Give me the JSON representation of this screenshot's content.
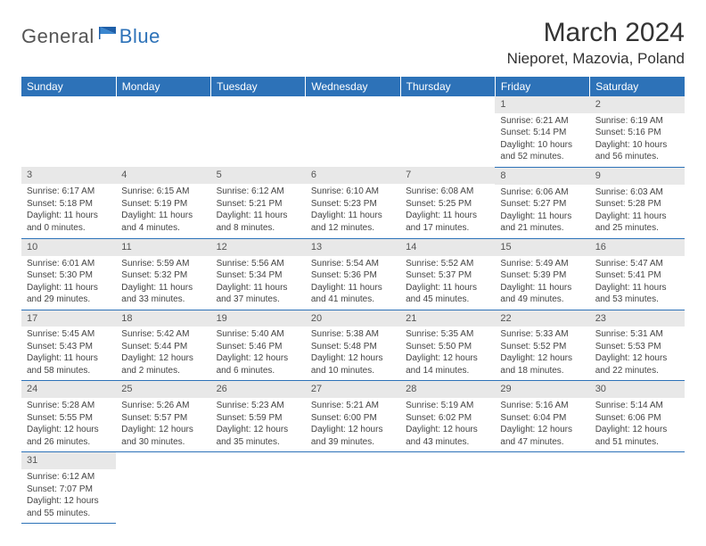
{
  "brand": {
    "name_a": "General",
    "name_b": "Blue"
  },
  "title": "March 2024",
  "location": "Nieporet, Mazovia, Poland",
  "colors": {
    "header_bg": "#2d72b8",
    "header_fg": "#ffffff",
    "daynum_bg": "#e8e8e8",
    "rule": "#2d72b8"
  },
  "weekdays": [
    "Sunday",
    "Monday",
    "Tuesday",
    "Wednesday",
    "Thursday",
    "Friday",
    "Saturday"
  ],
  "weeks": [
    [
      null,
      null,
      null,
      null,
      null,
      {
        "n": "1",
        "sunrise": "Sunrise: 6:21 AM",
        "sunset": "Sunset: 5:14 PM",
        "day1": "Daylight: 10 hours",
        "day2": "and 52 minutes."
      },
      {
        "n": "2",
        "sunrise": "Sunrise: 6:19 AM",
        "sunset": "Sunset: 5:16 PM",
        "day1": "Daylight: 10 hours",
        "day2": "and 56 minutes."
      }
    ],
    [
      {
        "n": "3",
        "sunrise": "Sunrise: 6:17 AM",
        "sunset": "Sunset: 5:18 PM",
        "day1": "Daylight: 11 hours",
        "day2": "and 0 minutes."
      },
      {
        "n": "4",
        "sunrise": "Sunrise: 6:15 AM",
        "sunset": "Sunset: 5:19 PM",
        "day1": "Daylight: 11 hours",
        "day2": "and 4 minutes."
      },
      {
        "n": "5",
        "sunrise": "Sunrise: 6:12 AM",
        "sunset": "Sunset: 5:21 PM",
        "day1": "Daylight: 11 hours",
        "day2": "and 8 minutes."
      },
      {
        "n": "6",
        "sunrise": "Sunrise: 6:10 AM",
        "sunset": "Sunset: 5:23 PM",
        "day1": "Daylight: 11 hours",
        "day2": "and 12 minutes."
      },
      {
        "n": "7",
        "sunrise": "Sunrise: 6:08 AM",
        "sunset": "Sunset: 5:25 PM",
        "day1": "Daylight: 11 hours",
        "day2": "and 17 minutes."
      },
      {
        "n": "8",
        "sunrise": "Sunrise: 6:06 AM",
        "sunset": "Sunset: 5:27 PM",
        "day1": "Daylight: 11 hours",
        "day2": "and 21 minutes."
      },
      {
        "n": "9",
        "sunrise": "Sunrise: 6:03 AM",
        "sunset": "Sunset: 5:28 PM",
        "day1": "Daylight: 11 hours",
        "day2": "and 25 minutes."
      }
    ],
    [
      {
        "n": "10",
        "sunrise": "Sunrise: 6:01 AM",
        "sunset": "Sunset: 5:30 PM",
        "day1": "Daylight: 11 hours",
        "day2": "and 29 minutes."
      },
      {
        "n": "11",
        "sunrise": "Sunrise: 5:59 AM",
        "sunset": "Sunset: 5:32 PM",
        "day1": "Daylight: 11 hours",
        "day2": "and 33 minutes."
      },
      {
        "n": "12",
        "sunrise": "Sunrise: 5:56 AM",
        "sunset": "Sunset: 5:34 PM",
        "day1": "Daylight: 11 hours",
        "day2": "and 37 minutes."
      },
      {
        "n": "13",
        "sunrise": "Sunrise: 5:54 AM",
        "sunset": "Sunset: 5:36 PM",
        "day1": "Daylight: 11 hours",
        "day2": "and 41 minutes."
      },
      {
        "n": "14",
        "sunrise": "Sunrise: 5:52 AM",
        "sunset": "Sunset: 5:37 PM",
        "day1": "Daylight: 11 hours",
        "day2": "and 45 minutes."
      },
      {
        "n": "15",
        "sunrise": "Sunrise: 5:49 AM",
        "sunset": "Sunset: 5:39 PM",
        "day1": "Daylight: 11 hours",
        "day2": "and 49 minutes."
      },
      {
        "n": "16",
        "sunrise": "Sunrise: 5:47 AM",
        "sunset": "Sunset: 5:41 PM",
        "day1": "Daylight: 11 hours",
        "day2": "and 53 minutes."
      }
    ],
    [
      {
        "n": "17",
        "sunrise": "Sunrise: 5:45 AM",
        "sunset": "Sunset: 5:43 PM",
        "day1": "Daylight: 11 hours",
        "day2": "and 58 minutes."
      },
      {
        "n": "18",
        "sunrise": "Sunrise: 5:42 AM",
        "sunset": "Sunset: 5:44 PM",
        "day1": "Daylight: 12 hours",
        "day2": "and 2 minutes."
      },
      {
        "n": "19",
        "sunrise": "Sunrise: 5:40 AM",
        "sunset": "Sunset: 5:46 PM",
        "day1": "Daylight: 12 hours",
        "day2": "and 6 minutes."
      },
      {
        "n": "20",
        "sunrise": "Sunrise: 5:38 AM",
        "sunset": "Sunset: 5:48 PM",
        "day1": "Daylight: 12 hours",
        "day2": "and 10 minutes."
      },
      {
        "n": "21",
        "sunrise": "Sunrise: 5:35 AM",
        "sunset": "Sunset: 5:50 PM",
        "day1": "Daylight: 12 hours",
        "day2": "and 14 minutes."
      },
      {
        "n": "22",
        "sunrise": "Sunrise: 5:33 AM",
        "sunset": "Sunset: 5:52 PM",
        "day1": "Daylight: 12 hours",
        "day2": "and 18 minutes."
      },
      {
        "n": "23",
        "sunrise": "Sunrise: 5:31 AM",
        "sunset": "Sunset: 5:53 PM",
        "day1": "Daylight: 12 hours",
        "day2": "and 22 minutes."
      }
    ],
    [
      {
        "n": "24",
        "sunrise": "Sunrise: 5:28 AM",
        "sunset": "Sunset: 5:55 PM",
        "day1": "Daylight: 12 hours",
        "day2": "and 26 minutes."
      },
      {
        "n": "25",
        "sunrise": "Sunrise: 5:26 AM",
        "sunset": "Sunset: 5:57 PM",
        "day1": "Daylight: 12 hours",
        "day2": "and 30 minutes."
      },
      {
        "n": "26",
        "sunrise": "Sunrise: 5:23 AM",
        "sunset": "Sunset: 5:59 PM",
        "day1": "Daylight: 12 hours",
        "day2": "and 35 minutes."
      },
      {
        "n": "27",
        "sunrise": "Sunrise: 5:21 AM",
        "sunset": "Sunset: 6:00 PM",
        "day1": "Daylight: 12 hours",
        "day2": "and 39 minutes."
      },
      {
        "n": "28",
        "sunrise": "Sunrise: 5:19 AM",
        "sunset": "Sunset: 6:02 PM",
        "day1": "Daylight: 12 hours",
        "day2": "and 43 minutes."
      },
      {
        "n": "29",
        "sunrise": "Sunrise: 5:16 AM",
        "sunset": "Sunset: 6:04 PM",
        "day1": "Daylight: 12 hours",
        "day2": "and 47 minutes."
      },
      {
        "n": "30",
        "sunrise": "Sunrise: 5:14 AM",
        "sunset": "Sunset: 6:06 PM",
        "day1": "Daylight: 12 hours",
        "day2": "and 51 minutes."
      }
    ],
    [
      {
        "n": "31",
        "sunrise": "Sunrise: 6:12 AM",
        "sunset": "Sunset: 7:07 PM",
        "day1": "Daylight: 12 hours",
        "day2": "and 55 minutes."
      },
      null,
      null,
      null,
      null,
      null,
      null
    ]
  ]
}
